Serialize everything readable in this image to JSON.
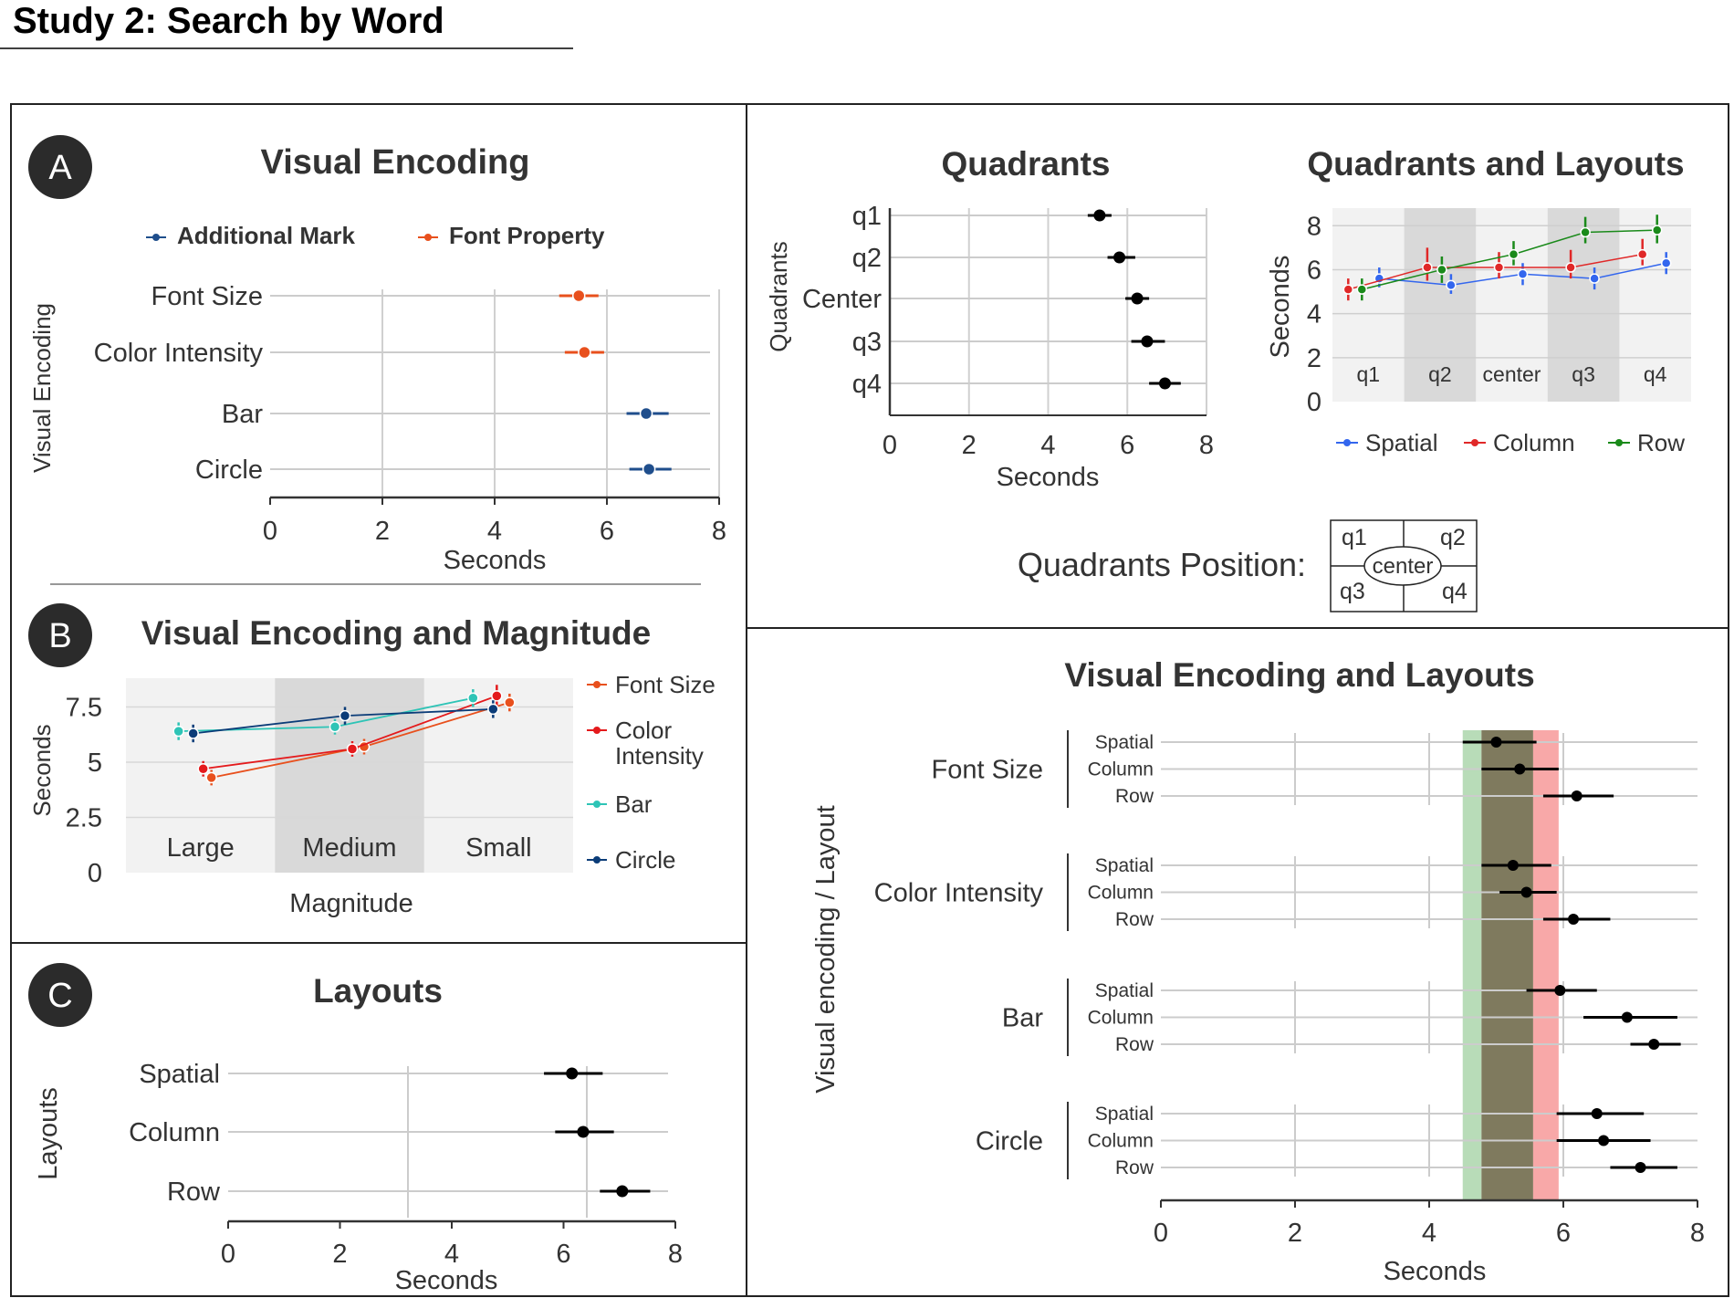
{
  "page": {
    "title": "Study 2: Search by Word"
  },
  "colors": {
    "additional_mark": "#1f4e8c",
    "font_property": "#e8501d",
    "font_size": "#e8501d",
    "color_intensity": "#e41a1c",
    "bar": "#2ec4b6",
    "circle": "#0b3c78",
    "spatial": "#3366ee",
    "column": "#e02828",
    "row": "#1a8a1a",
    "band_green": "#b8dcb8",
    "band_overlap": "#7f7a5e",
    "band_red": "#f8a8a8"
  },
  "panels": {
    "A": {
      "badge": "A"
    },
    "B": {
      "badge": "B"
    },
    "C": {
      "badge": "C"
    }
  },
  "quad_position": {
    "label": "Quadrants Position:",
    "cells": [
      "q1",
      "q2",
      "q3",
      "q4"
    ],
    "center": "center"
  },
  "chart_data": [
    {
      "id": "visual_encoding",
      "type": "scatter",
      "title": "Visual Encoding",
      "xlabel": "Seconds",
      "ylabel": "Visual Encoding",
      "xlim": [
        0,
        8
      ],
      "xticks": [
        "0",
        "2",
        "4",
        "6",
        "8"
      ],
      "categories": [
        "Font Size",
        "Color Intensity",
        "Bar",
        "Circle"
      ],
      "legend": [
        "Additional Mark",
        "Font Property"
      ],
      "points": [
        {
          "category": "Font Size",
          "group": "Font Property",
          "mean": 5.5,
          "lo": 5.15,
          "hi": 5.85
        },
        {
          "category": "Color Intensity",
          "group": "Font Property",
          "mean": 5.6,
          "lo": 5.25,
          "hi": 5.95
        },
        {
          "category": "Bar",
          "group": "Additional Mark",
          "mean": 6.7,
          "lo": 6.35,
          "hi": 7.1
        },
        {
          "category": "Circle",
          "group": "Additional Mark",
          "mean": 6.75,
          "lo": 6.4,
          "hi": 7.15
        }
      ]
    },
    {
      "id": "encoding_magnitude",
      "type": "line",
      "title": "Visual Encoding and Magnitude",
      "xlabel": "Magnitude",
      "ylabel": "Seconds",
      "ylim": [
        0,
        8.8
      ],
      "yticks": [
        "0",
        "2.5",
        "5",
        "7.5"
      ],
      "categories": [
        "Large",
        "Medium",
        "Small"
      ],
      "series": [
        {
          "name": "Font Size",
          "values": [
            4.3,
            5.7,
            7.7
          ],
          "lo": [
            3.95,
            5.35,
            7.3
          ],
          "hi": [
            4.65,
            6.05,
            8.1
          ]
        },
        {
          "name": "Color Intensity",
          "values": [
            4.7,
            5.6,
            8.0
          ],
          "lo": [
            4.35,
            5.25,
            7.5
          ],
          "hi": [
            5.05,
            5.95,
            8.5
          ]
        },
        {
          "name": "Bar",
          "values": [
            6.4,
            6.6,
            7.9
          ],
          "lo": [
            6.0,
            6.25,
            7.5
          ],
          "hi": [
            6.8,
            6.95,
            8.3
          ]
        },
        {
          "name": "Circle",
          "values": [
            6.3,
            7.1,
            7.4
          ],
          "lo": [
            5.9,
            6.7,
            7.0
          ],
          "hi": [
            6.7,
            7.5,
            7.8
          ]
        }
      ]
    },
    {
      "id": "layouts",
      "type": "scatter",
      "title": "Layouts",
      "xlabel": "Seconds",
      "ylabel": "Layouts",
      "xlim": [
        0,
        8
      ],
      "xticks": [
        "0",
        "2",
        "4",
        "6",
        "8"
      ],
      "categories": [
        "Spatial",
        "Column",
        "Row"
      ],
      "points": [
        {
          "category": "Spatial",
          "mean": 6.15,
          "lo": 5.65,
          "hi": 6.7
        },
        {
          "category": "Column",
          "mean": 6.35,
          "lo": 5.85,
          "hi": 6.9
        },
        {
          "category": "Row",
          "mean": 7.05,
          "lo": 6.65,
          "hi": 7.55
        }
      ]
    },
    {
      "id": "quadrants",
      "type": "scatter",
      "title": "Quadrants",
      "xlabel": "Seconds",
      "ylabel": "Quadrants",
      "xlim": [
        0,
        8
      ],
      "xticks": [
        "0",
        "2",
        "4",
        "6",
        "8"
      ],
      "categories": [
        "q1",
        "q2",
        "Center",
        "q3",
        "q4"
      ],
      "points": [
        {
          "category": "q1",
          "mean": 5.3,
          "lo": 5.0,
          "hi": 5.6
        },
        {
          "category": "q2",
          "mean": 5.8,
          "lo": 5.5,
          "hi": 6.2
        },
        {
          "category": "Center",
          "mean": 6.25,
          "lo": 5.95,
          "hi": 6.55
        },
        {
          "category": "q3",
          "mean": 6.5,
          "lo": 6.1,
          "hi": 6.95
        },
        {
          "category": "q4",
          "mean": 6.95,
          "lo": 6.55,
          "hi": 7.35
        }
      ]
    },
    {
      "id": "quadrants_layouts",
      "type": "line",
      "title": "Quadrants and Layouts",
      "ylabel": "Seconds",
      "ylim": [
        0,
        8.8
      ],
      "yticks": [
        "0",
        "2",
        "4",
        "6",
        "8"
      ],
      "categories": [
        "q1",
        "q2",
        "center",
        "q3",
        "q4"
      ],
      "series": [
        {
          "name": "Spatial",
          "values": [
            5.6,
            5.3,
            5.8,
            5.6,
            6.3
          ],
          "lo": [
            5.2,
            4.9,
            5.3,
            5.1,
            5.8
          ],
          "hi": [
            6.1,
            5.8,
            6.3,
            6.1,
            6.8
          ]
        },
        {
          "name": "Column",
          "values": [
            5.1,
            6.1,
            6.1,
            6.1,
            6.7
          ],
          "lo": [
            4.6,
            5.5,
            5.6,
            5.6,
            6.2
          ],
          "hi": [
            5.6,
            7.0,
            6.8,
            6.9,
            7.4
          ]
        },
        {
          "name": "Row",
          "values": [
            5.1,
            6.0,
            6.7,
            7.7,
            7.8
          ],
          "lo": [
            4.6,
            5.4,
            6.2,
            7.2,
            7.2
          ],
          "hi": [
            5.6,
            6.6,
            7.3,
            8.4,
            8.5
          ]
        }
      ]
    },
    {
      "id": "encoding_layouts",
      "type": "scatter",
      "title": "Visual Encoding and Layouts",
      "xlabel": "Seconds",
      "ylabel": "Visual encoding / Layout",
      "xlim": [
        0,
        8
      ],
      "xticks": [
        "0",
        "2",
        "4",
        "6",
        "8"
      ],
      "bands": [
        {
          "name": "green",
          "from": 4.5,
          "to": 5.55
        },
        {
          "name": "red",
          "from": 4.78,
          "to": 5.93
        }
      ],
      "groups": [
        {
          "name": "Font Size",
          "rows": [
            {
              "layout": "Spatial",
              "mean": 5.0,
              "lo": 4.5,
              "hi": 5.6
            },
            {
              "layout": "Column",
              "mean": 5.35,
              "lo": 4.78,
              "hi": 5.93
            },
            {
              "layout": "Row",
              "mean": 6.2,
              "lo": 5.7,
              "hi": 6.75
            }
          ]
        },
        {
          "name": "Color Intensity",
          "rows": [
            {
              "layout": "Spatial",
              "mean": 5.25,
              "lo": 4.78,
              "hi": 5.82
            },
            {
              "layout": "Column",
              "mean": 5.45,
              "lo": 5.05,
              "hi": 5.9
            },
            {
              "layout": "Row",
              "mean": 6.15,
              "lo": 5.7,
              "hi": 6.7
            }
          ]
        },
        {
          "name": "Bar",
          "rows": [
            {
              "layout": "Spatial",
              "mean": 5.95,
              "lo": 5.45,
              "hi": 6.5
            },
            {
              "layout": "Column",
              "mean": 6.95,
              "lo": 6.3,
              "hi": 7.7
            },
            {
              "layout": "Row",
              "mean": 7.35,
              "lo": 7.0,
              "hi": 7.75
            }
          ]
        },
        {
          "name": "Circle",
          "rows": [
            {
              "layout": "Spatial",
              "mean": 6.5,
              "lo": 5.9,
              "hi": 7.2
            },
            {
              "layout": "Column",
              "mean": 6.6,
              "lo": 5.9,
              "hi": 7.3
            },
            {
              "layout": "Row",
              "mean": 7.15,
              "lo": 6.7,
              "hi": 7.7
            }
          ]
        }
      ]
    }
  ]
}
